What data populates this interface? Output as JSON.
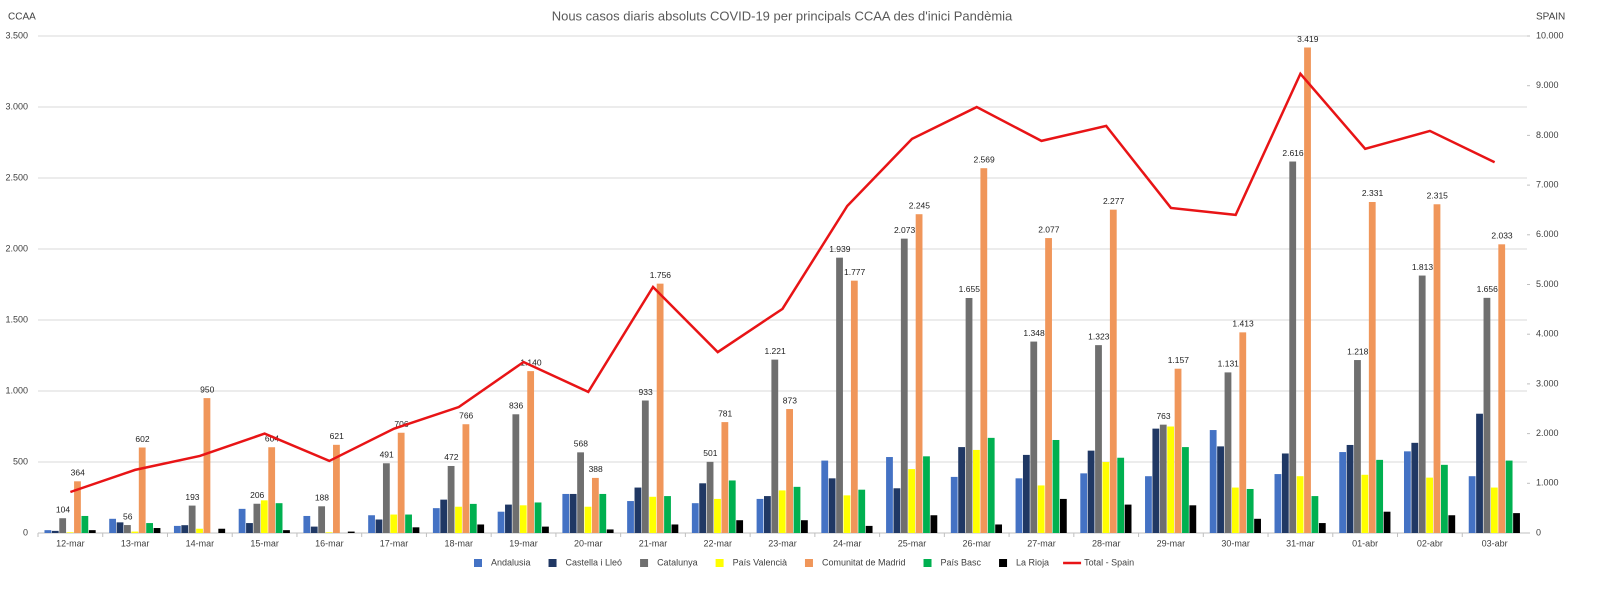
{
  "chart_data": {
    "type": "bar",
    "title": "Nous casos diaris absoluts COVID-19 per principals CCAA des d'inici Pandèmia",
    "ylabel": "CCAA",
    "y2label": "SPAIN",
    "categories": [
      "12-mar",
      "13-mar",
      "14-mar",
      "15-mar",
      "16-mar",
      "17-mar",
      "18-mar",
      "19-mar",
      "20-mar",
      "21-mar",
      "22-mar",
      "23-mar",
      "24-mar",
      "25-mar",
      "26-mar",
      "27-mar",
      "28-mar",
      "29-mar",
      "30-mar",
      "31-mar",
      "01-abr",
      "02-abr",
      "03-abr"
    ],
    "ylim": [
      0,
      3500
    ],
    "yticks": [
      0,
      500,
      {
        "value": 1000,
        "label": "1.000"
      },
      {
        "value": 1500,
        "label": "1.500"
      },
      {
        "value": 2000,
        "label": "2.000"
      },
      {
        "value": 2500,
        "label": "2.500"
      },
      {
        "value": 3000,
        "label": "3.000"
      },
      {
        "value": 3500,
        "label": "3.500"
      }
    ],
    "y2lim": [
      0,
      10000
    ],
    "y2ticks": [
      0,
      {
        "value": 1000,
        "label": "1.000"
      },
      {
        "value": 2000,
        "label": "2.000"
      },
      {
        "value": 3000,
        "label": "3.000"
      },
      {
        "value": 4000,
        "label": "4.000"
      },
      {
        "value": 5000,
        "label": "5.000"
      },
      {
        "value": 6000,
        "label": "6.000"
      },
      {
        "value": 7000,
        "label": "7.000"
      },
      {
        "value": 8000,
        "label": "8.000"
      },
      {
        "value": 9000,
        "label": "9.000"
      },
      {
        "value": 10000,
        "label": "10.000"
      }
    ],
    "grid": true,
    "legend": "bottom",
    "series": [
      {
        "name": "Andalusia",
        "color": "#4472c4",
        "values": [
          20,
          100,
          50,
          170,
          120,
          125,
          175,
          150,
          275,
          225,
          210,
          240,
          510,
          535,
          395,
          385,
          420,
          400,
          725,
          415,
          570,
          575,
          400
        ]
      },
      {
        "name": "Castella i Lleó",
        "color": "#203864",
        "values": [
          15,
          75,
          55,
          70,
          45,
          95,
          235,
          200,
          275,
          320,
          350,
          260,
          385,
          315,
          605,
          550,
          580,
          735,
          610,
          560,
          620,
          635,
          840
        ]
      },
      {
        "name": "Catalunya",
        "color": "#6f6f6f",
        "values": [
          104,
          56,
          193,
          206,
          188,
          491,
          472,
          836,
          568,
          933,
          501,
          1221,
          1939,
          2073,
          1655,
          1348,
          1323,
          763,
          1131,
          2616,
          1218,
          1813,
          1656
        ],
        "value_labels": [
          "104",
          "56",
          "193",
          "206",
          "188",
          "491",
          "472",
          "836",
          "568",
          "933",
          "501",
          "1.221",
          "1.939",
          "2.073",
          "1.655",
          "1.348",
          "1.323",
          "763",
          "1.131",
          "2.616",
          "1.218",
          "1.813",
          "1.656"
        ]
      },
      {
        "name": "País Valencià",
        "color": "#ffff00",
        "values": [
          5,
          10,
          30,
          230,
          5,
          130,
          185,
          195,
          185,
          255,
          240,
          300,
          265,
          450,
          585,
          335,
          500,
          750,
          320,
          400,
          410,
          390,
          320
        ]
      },
      {
        "name": "Comunitat de Madrid",
        "color": "#f0965a",
        "values": [
          364,
          602,
          950,
          604,
          621,
          706,
          766,
          1140,
          388,
          1756,
          781,
          873,
          1777,
          2245,
          2569,
          2077,
          2277,
          1157,
          1413,
          3419,
          2331,
          2315,
          2033
        ],
        "value_labels": [
          "364",
          "602",
          "950",
          "604",
          "621",
          "706",
          "766",
          "1.140",
          "388",
          "1.756",
          "781",
          "873",
          "1.777",
          "2.245",
          "2.569",
          "2.077",
          "2.277",
          "1.157",
          "1.413",
          "3.419",
          "2.331",
          "2.315",
          "2.033"
        ]
      },
      {
        "name": "País Basc",
        "color": "#00b050",
        "values": [
          120,
          70,
          0,
          210,
          0,
          130,
          205,
          215,
          275,
          260,
          370,
          325,
          305,
          540,
          670,
          655,
          530,
          605,
          310,
          260,
          515,
          480,
          510
        ]
      },
      {
        "name": "La Rioja",
        "color": "#000000",
        "values": [
          20,
          35,
          30,
          20,
          10,
          40,
          60,
          45,
          25,
          60,
          90,
          90,
          50,
          125,
          60,
          240,
          200,
          195,
          100,
          70,
          150,
          125,
          140
        ]
      },
      {
        "name": "Total - Spain",
        "color": "#e81416",
        "type": "line",
        "axis": "y2",
        "values": [
          825,
          1270,
          1550,
          2000,
          1450,
          2100,
          2535,
          3440,
          2840,
          4950,
          3640,
          4510,
          6580,
          7930,
          8570,
          7890,
          8190,
          6540,
          6400,
          9240,
          7730,
          8090,
          7460
        ]
      }
    ]
  }
}
